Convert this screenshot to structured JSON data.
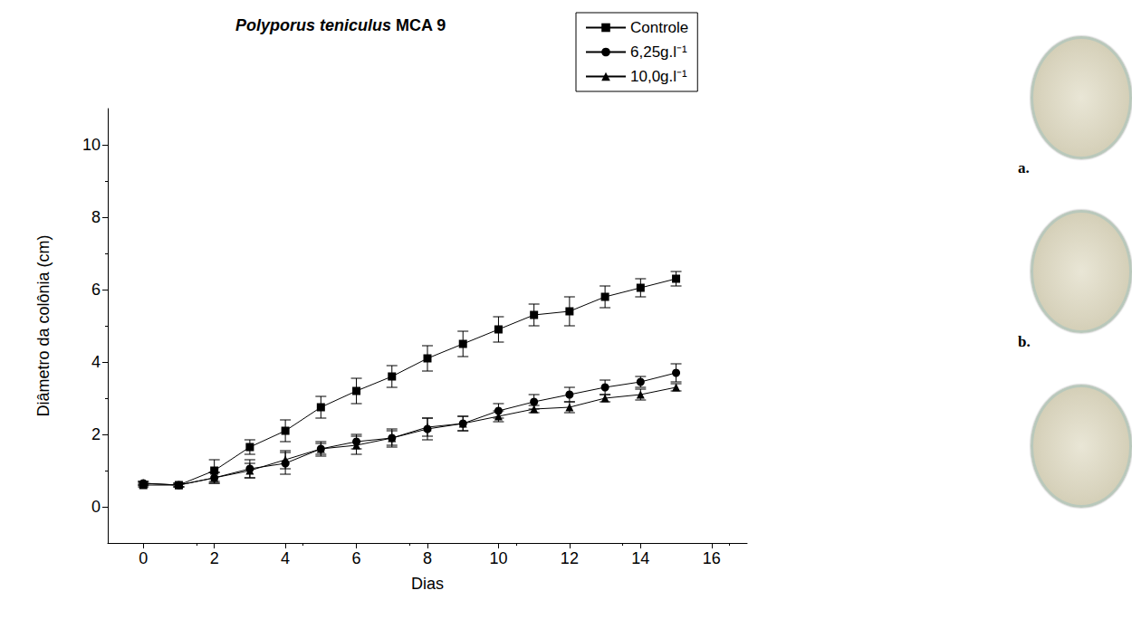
{
  "chart_data": {
    "type": "line",
    "title": "Polyporus teniculus MCA 9",
    "x_label": "Dias",
    "y_label": "Diâmetro da colônia (cm)",
    "x": [
      0,
      1,
      2,
      3,
      4,
      5,
      6,
      7,
      8,
      9,
      10,
      11,
      12,
      13,
      14,
      15
    ],
    "series": [
      {
        "name": "Controle",
        "color": "#000000",
        "marker": "square",
        "values": [
          0.6,
          0.6,
          1.0,
          1.65,
          2.1,
          2.75,
          3.2,
          3.6,
          4.1,
          4.5,
          4.9,
          5.3,
          5.4,
          5.8,
          6.05,
          6.3
        ],
        "errors": [
          0.05,
          0.05,
          0.3,
          0.2,
          0.3,
          0.3,
          0.35,
          0.3,
          0.35,
          0.35,
          0.35,
          0.3,
          0.4,
          0.3,
          0.25,
          0.2
        ]
      },
      {
        "name": "6,25g.l⁻¹",
        "color": "#000000",
        "marker": "circle",
        "values": [
          0.65,
          0.6,
          0.8,
          1.05,
          1.2,
          1.6,
          1.8,
          1.9,
          2.15,
          2.3,
          2.65,
          2.9,
          3.1,
          3.3,
          3.45,
          3.7
        ],
        "errors": [
          0.05,
          0.05,
          0.15,
          0.25,
          0.3,
          0.2,
          0.2,
          0.2,
          0.3,
          0.2,
          0.2,
          0.2,
          0.2,
          0.2,
          0.15,
          0.25
        ]
      },
      {
        "name": "10,0g.l⁻¹",
        "color": "#000000",
        "marker": "triangle",
        "values": [
          0.65,
          0.6,
          0.8,
          1.0,
          1.3,
          1.6,
          1.7,
          1.9,
          2.2,
          2.3,
          2.5,
          2.7,
          2.75,
          3.0,
          3.1,
          3.3
        ],
        "errors": [
          0.05,
          0.05,
          0.15,
          0.2,
          0.25,
          0.15,
          0.25,
          0.25,
          0.25,
          0.2,
          0.15,
          0.1,
          0.15,
          0.1,
          0.15,
          0.1
        ]
      }
    ],
    "xlim": [
      -1,
      17
    ],
    "xticks": [
      0,
      2,
      4,
      6,
      8,
      10,
      12,
      14,
      16
    ],
    "ylim": [
      -1,
      11
    ],
    "yticks": [
      0,
      2,
      4,
      6,
      8,
      10
    ],
    "grid": false,
    "legend": "upper right",
    "annotations": [
      "a.",
      "b."
    ]
  }
}
